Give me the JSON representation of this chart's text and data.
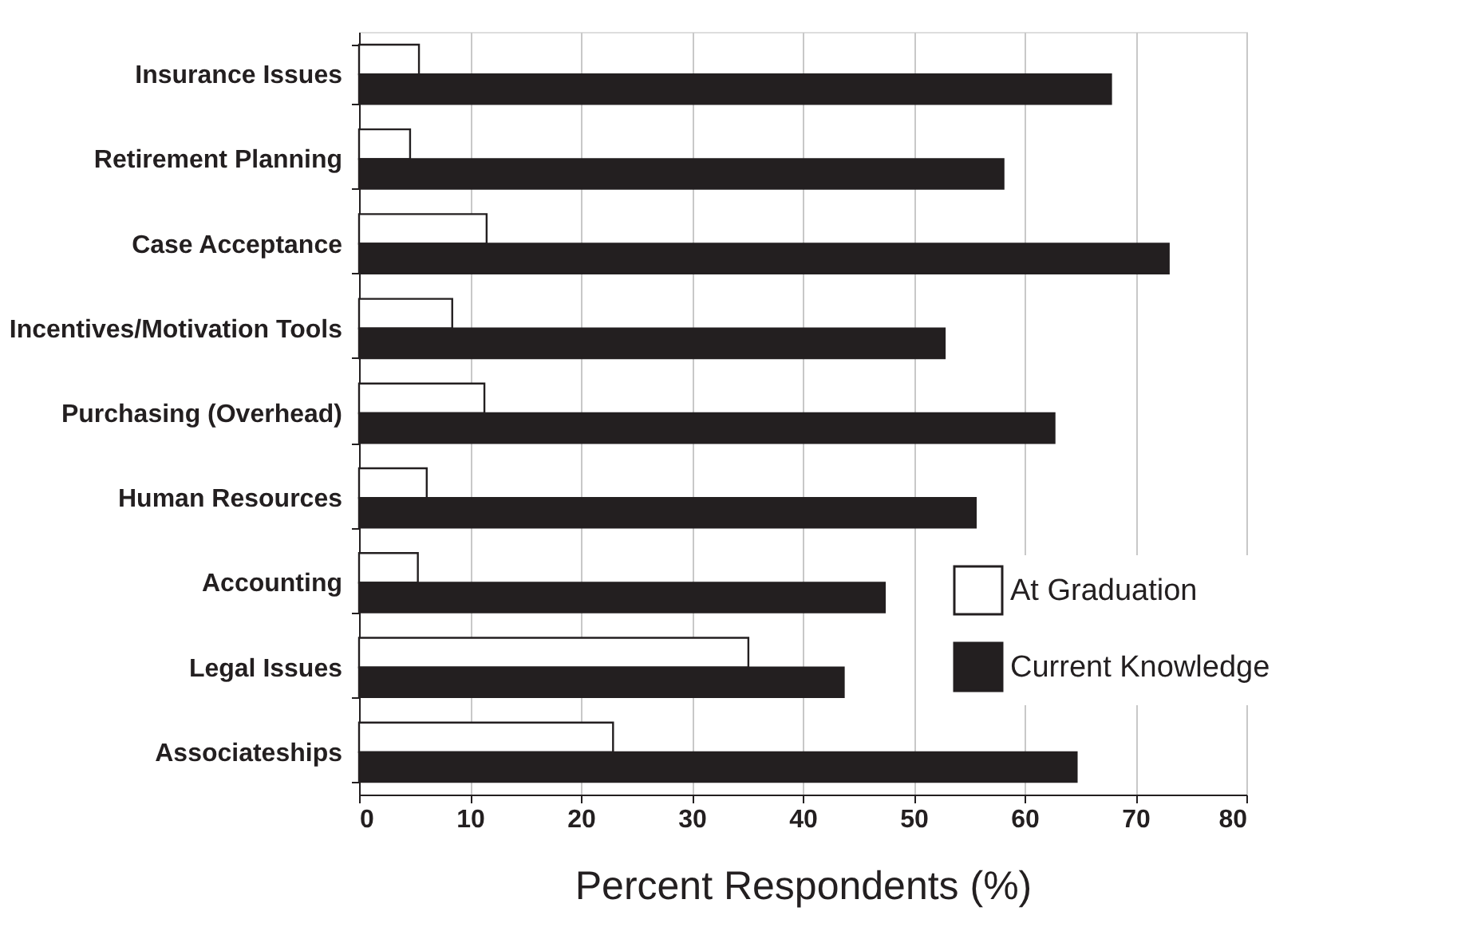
{
  "chart_data": {
    "type": "bar",
    "orientation": "horizontal",
    "xlabel": "Percent Respondents (%)",
    "categories": [
      "Insurance Issues",
      "Retirement Planning",
      "Case Acceptance",
      "Incentives/Motivation Tools",
      "Purchasing (Overhead)",
      "Human Resources",
      "Accounting",
      "Legal Issues",
      "Associateships"
    ],
    "series": [
      {
        "name": "At Graduation",
        "color": "#ffffff",
        "values": [
          5.4,
          4.6,
          11.5,
          8.4,
          11.3,
          6.1,
          5.3,
          35.1,
          22.9
        ]
      },
      {
        "name": "Current Knowledge",
        "color": "#231f20",
        "values": [
          67.8,
          58.1,
          73.0,
          52.8,
          62.7,
          55.6,
          47.4,
          43.7,
          64.7
        ]
      }
    ],
    "xlim": [
      0,
      80
    ],
    "xticks": [
      0,
      10,
      20,
      30,
      40,
      50,
      60,
      70,
      80
    ],
    "grid": "x",
    "legend": "bottom right"
  }
}
